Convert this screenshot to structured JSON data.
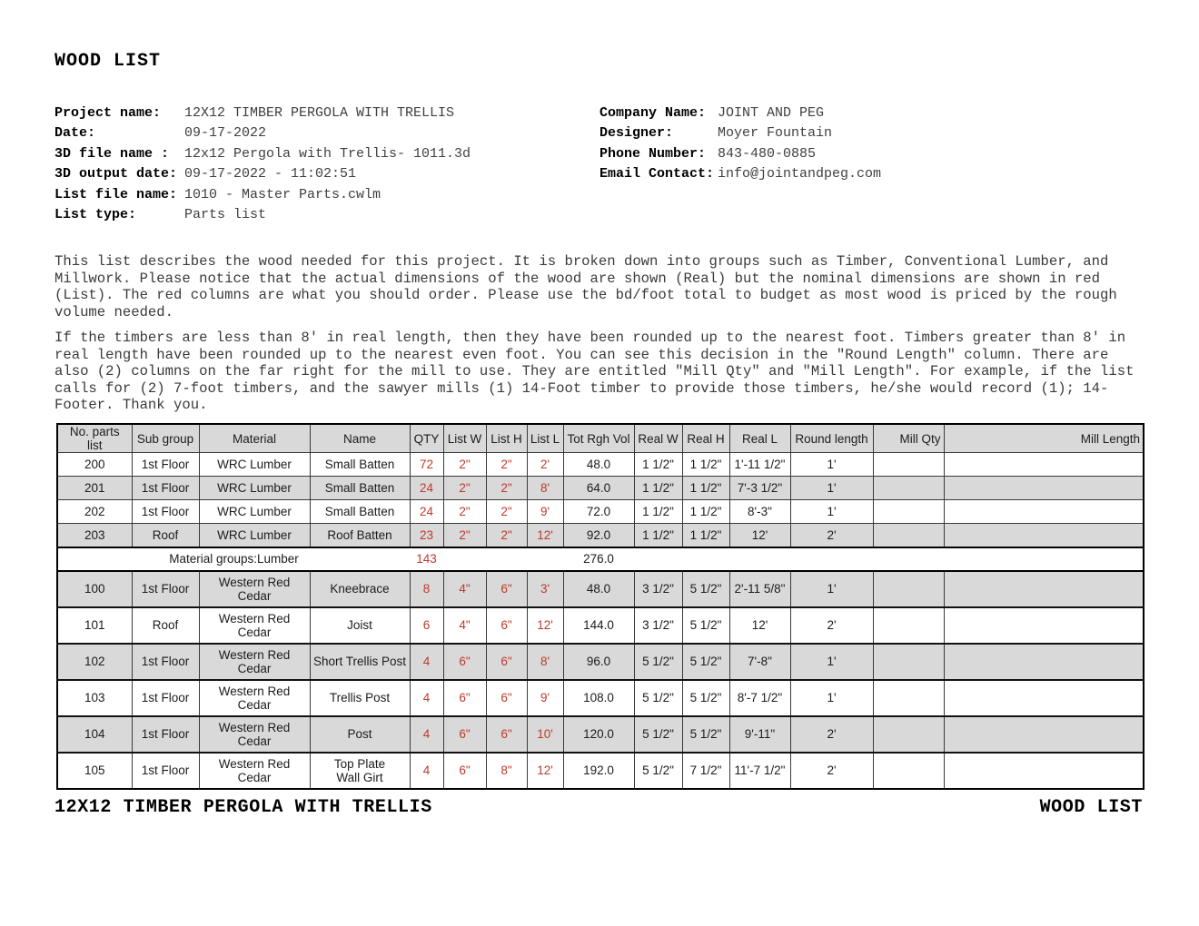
{
  "page": {
    "title": "WOOD LIST",
    "footer_left": "12X12 TIMBER PERGOLA WITH TRELLIS",
    "footer_right": "WOOD LIST"
  },
  "info_left": {
    "rows": [
      {
        "label": "Project name:",
        "value": "12X12 TIMBER PERGOLA WITH TRELLIS"
      },
      {
        "label": "Date:",
        "value": "09-17-2022"
      },
      {
        "label": "3D file name :",
        "value": "12x12 Pergola with Trellis- 1011.3d"
      },
      {
        "label": "3D output date:",
        "value": "09-17-2022 - 11:02:51"
      },
      {
        "label": "List file name:",
        "value": "1010 - Master Parts.cwlm"
      },
      {
        "label": "List type:",
        "value": "Parts list"
      }
    ]
  },
  "info_right": {
    "rows": [
      {
        "label": "Company Name:",
        "value": "JOINT AND PEG"
      },
      {
        "label": "Designer:",
        "value": "Moyer Fountain"
      },
      {
        "label": "Phone Number:",
        "value": "843-480-0885"
      },
      {
        "label": "Email Contact:",
        "value": "info@jointandpeg.com"
      }
    ]
  },
  "paragraphs": {
    "p1": "This list describes the wood needed for this project.  It is broken down into groups such as Timber, Conventional Lumber, and Millwork. Please notice that the actual dimensions of the wood are shown (Real) but the nominal dimensions are shown in red (List).  The red columns are what you should order.  Please use the bd/foot total to budget as most wood is priced by the rough volume needed.",
    "p2": "If the timbers are less than 8' in real length, then they have been rounded up to the nearest foot. Timbers greater than 8' in real length have been rounded up to the nearest even foot. You can see this decision in the \"Round Length\" column. There are also (2) columns on the far right for the mill to use. They are entitled \"Mill Qty\" and \"Mill Length\". For example, if the list calls for (2) 7-foot timbers, and the sawyer mills (1) 14-Foot timber to provide those timbers, he/she would record (1); 14-Footer. Thank you."
  },
  "table": {
    "columns": [
      "No. parts list",
      "Sub group",
      "Material",
      "Name",
      "QTY",
      "List W",
      "List H",
      "List L",
      "Tot Rgh Vol",
      "Real W",
      "Real H",
      "Real L",
      "Round length",
      "Mill Qty",
      "Mill Length"
    ],
    "groups": [
      {
        "alt_start": true,
        "rows": [
          [
            "200",
            "1st Floor",
            "WRC Lumber",
            "Small Batten",
            "72",
            "2\"",
            "2\"",
            "2'",
            "48.0",
            "1 1/2\"",
            "1 1/2\"",
            "1'-11 1/2\"",
            "1'",
            "",
            ""
          ],
          [
            "201",
            "1st Floor",
            "WRC Lumber",
            "Small Batten",
            "24",
            "2\"",
            "2\"",
            "8'",
            "64.0",
            "1 1/2\"",
            "1 1/2\"",
            "7'-3 1/2\"",
            "1'",
            "",
            ""
          ],
          [
            "202",
            "1st Floor",
            "WRC Lumber",
            "Small Batten",
            "24",
            "2\"",
            "2\"",
            "9'",
            "72.0",
            "1 1/2\"",
            "1 1/2\"",
            "8'-3\"",
            "1'",
            "",
            ""
          ],
          [
            "203",
            "Roof",
            "WRC Lumber",
            "Roof Batten",
            "23",
            "2\"",
            "2\"",
            "12'",
            "92.0",
            "1 1/2\"",
            "1 1/2\"",
            "12'",
            "2'",
            "",
            ""
          ]
        ],
        "summary": {
          "label": "Material groups:Lumber",
          "qty_total": "143",
          "vol_total": "276.0"
        }
      },
      {
        "alt_start": false,
        "rows": [
          [
            "100",
            "1st Floor",
            "Western Red Cedar",
            "Kneebrace",
            "8",
            "4\"",
            "6\"",
            "3'",
            "48.0",
            "3 1/2\"",
            "5 1/2\"",
            "2'-11 5/8\"",
            "1'",
            "",
            ""
          ],
          [
            "101",
            "Roof",
            "Western Red Cedar",
            "Joist",
            "6",
            "4\"",
            "6\"",
            "12'",
            "144.0",
            "3 1/2\"",
            "5 1/2\"",
            "12'",
            "2'",
            "",
            ""
          ],
          [
            "102",
            "1st Floor",
            "Western Red Cedar",
            "Short Trellis Post",
            "4",
            "6\"",
            "6\"",
            "8'",
            "96.0",
            "5 1/2\"",
            "5 1/2\"",
            "7'-8\"",
            "1'",
            "",
            ""
          ],
          [
            "103",
            "1st Floor",
            "Western Red Cedar",
            "Trellis Post",
            "4",
            "6\"",
            "6\"",
            "9'",
            "108.0",
            "5 1/2\"",
            "5 1/2\"",
            "8'-7 1/2\"",
            "1'",
            "",
            ""
          ],
          [
            "104",
            "1st Floor",
            "Western Red Cedar",
            "Post",
            "4",
            "6\"",
            "6\"",
            "10'",
            "120.0",
            "5 1/2\"",
            "5 1/2\"",
            "9'-11\"",
            "2'",
            "",
            ""
          ],
          [
            "105",
            "1st Floor",
            "Western Red Cedar",
            "Top Plate\nWall Girt",
            "4",
            "6\"",
            "8\"",
            "12'",
            "192.0",
            "5 1/2\"",
            "7 1/2\"",
            "11'-7 1/2\"",
            "2'",
            "",
            ""
          ]
        ]
      }
    ]
  },
  "colors": {
    "accent_red": "#c0392b",
    "stripe": "#d9d9d9"
  }
}
